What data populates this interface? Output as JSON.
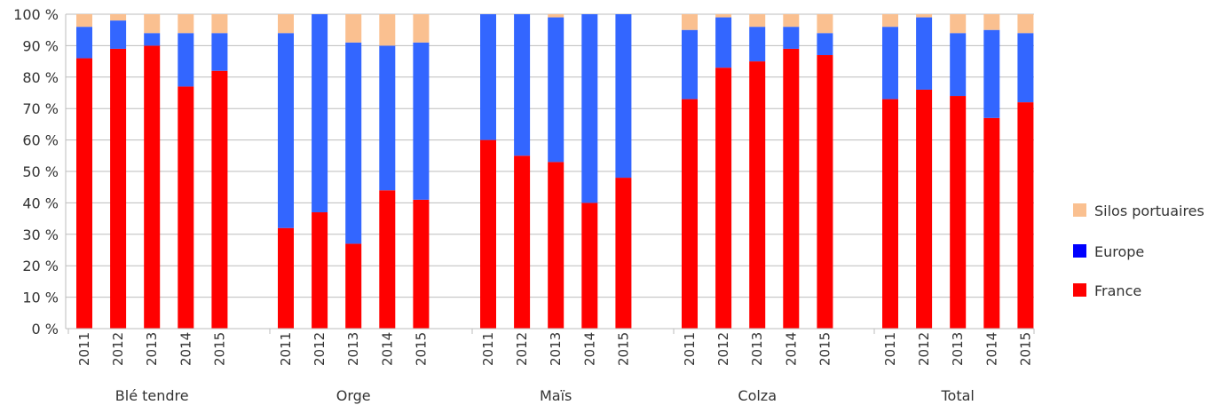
{
  "chart_data": {
    "type": "bar",
    "stacked": true,
    "title": "",
    "xlabel": "",
    "ylabel": "",
    "ylim": [
      0,
      100
    ],
    "yticks": [
      "0 %",
      "10 %",
      "20 %",
      "30 %",
      "40 %",
      "50 %",
      "60 %",
      "70 %",
      "80 %",
      "90 %",
      "100 %"
    ],
    "grid": true,
    "legend_position": "right",
    "groups": [
      "Blé tendre",
      "Orge",
      "Maïs",
      "Colza",
      "Total"
    ],
    "years": [
      "2011",
      "2012",
      "2013",
      "2014",
      "2015"
    ],
    "series": [
      {
        "name": "France",
        "color": "#ff0000",
        "values": [
          [
            86,
            89,
            90,
            77,
            82
          ],
          [
            32,
            37,
            27,
            44,
            41
          ],
          [
            60,
            55,
            53,
            40,
            48
          ],
          [
            73,
            83,
            85,
            89,
            87
          ],
          [
            73,
            76,
            74,
            67,
            72
          ]
        ]
      },
      {
        "name": "Europe",
        "color": "#3366ff",
        "legend_color": "#0000ff",
        "values": [
          [
            10,
            9,
            4,
            17,
            12
          ],
          [
            62,
            63,
            64,
            46,
            50
          ],
          [
            40,
            45,
            46,
            60,
            52
          ],
          [
            22,
            16,
            11,
            7,
            7
          ],
          [
            23,
            23,
            20,
            28,
            22
          ]
        ]
      },
      {
        "name": "Silos portuaires",
        "color": "#fac090",
        "values": [
          [
            4,
            2,
            6,
            6,
            6
          ],
          [
            6,
            0,
            9,
            10,
            9
          ],
          [
            0,
            0,
            1,
            0,
            0
          ],
          [
            5,
            1,
            4,
            4,
            6
          ],
          [
            4,
            1,
            6,
            5,
            6
          ]
        ]
      }
    ],
    "legend_order": [
      "Silos portuaires",
      "Europe",
      "France"
    ]
  }
}
